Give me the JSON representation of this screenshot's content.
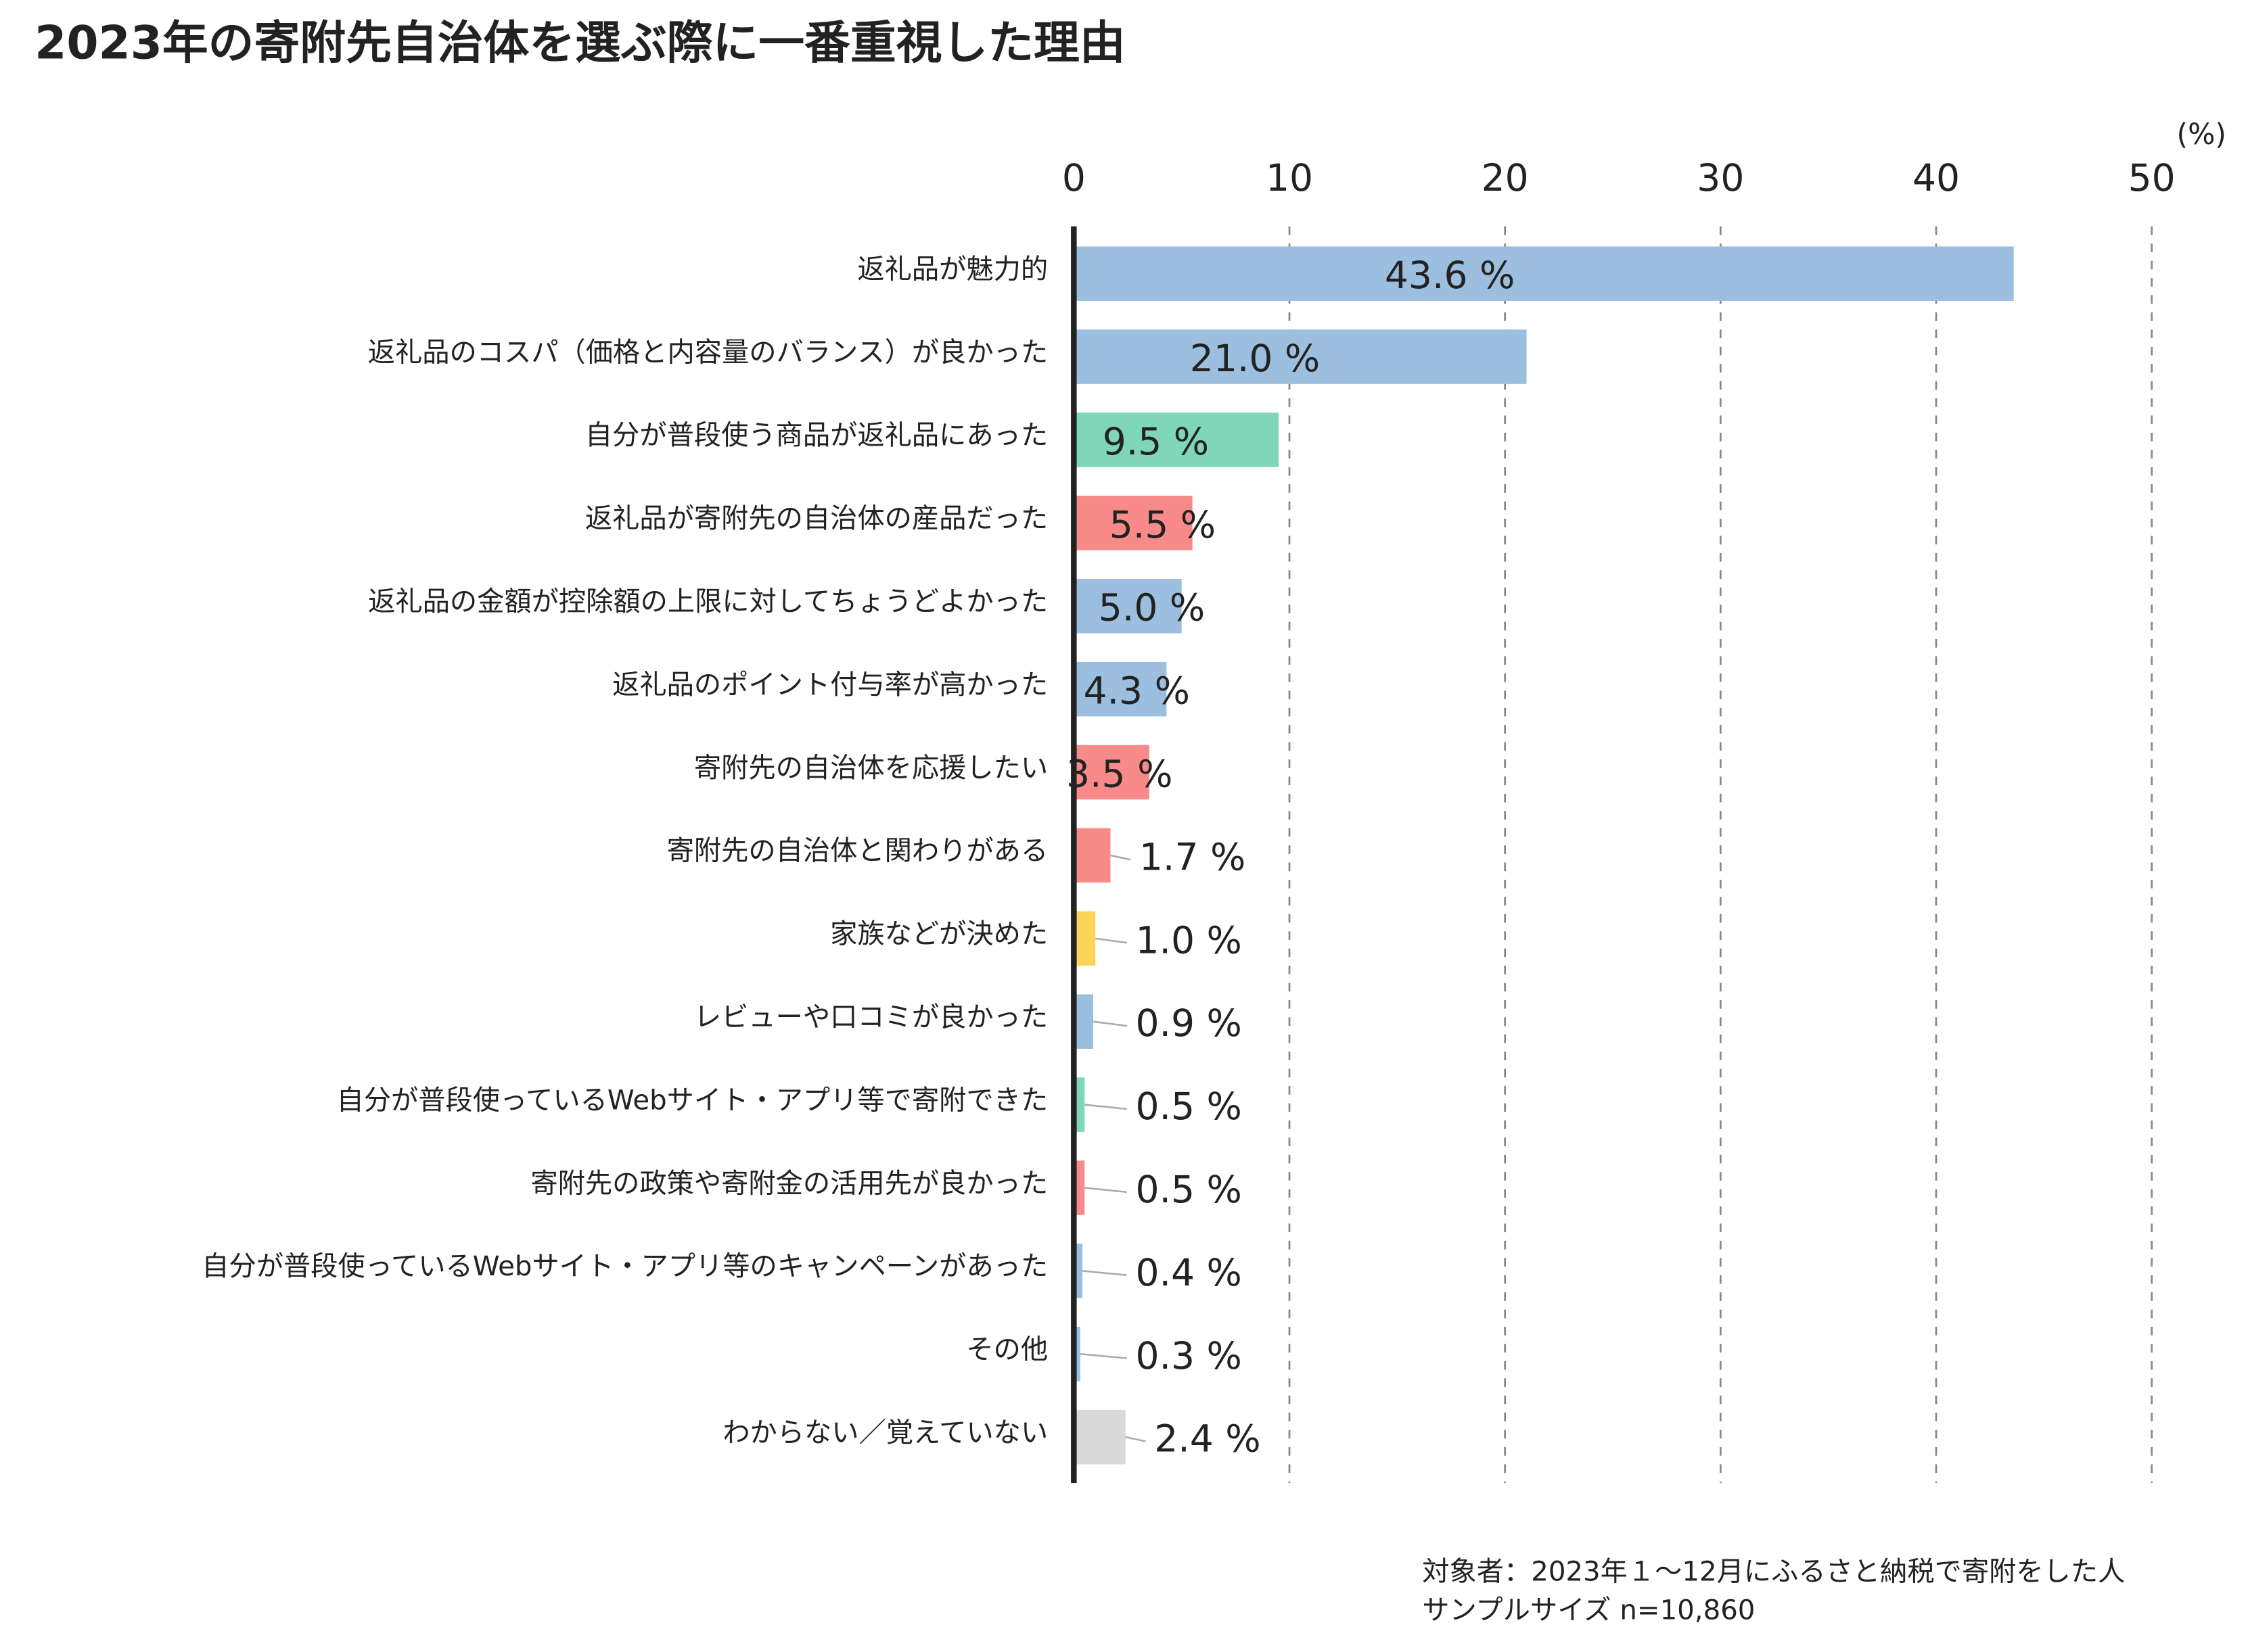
{
  "chart_data": {
    "type": "bar",
    "orientation": "horizontal",
    "title": "2023年の寄附先自治体を選ぶ際に一番重視した理由",
    "unit_label": "(%)",
    "categories": [
      "返礼品が魅力的",
      "返礼品のコスパ（価格と内容量のバランス）が良かった",
      "自分が普段使う商品が返礼品にあった",
      "返礼品が寄附先の自治体の産品だった",
      "返礼品の金額が控除額の上限に対してちょうどよかった",
      "返礼品のポイント付与率が高かった",
      "寄附先の自治体を応援したい",
      "寄附先の自治体と関わりがある",
      "家族などが決めた",
      "レビューや口コミが良かった",
      "自分が普段使っているWebサイト・アプリ等で寄附できた",
      "寄附先の政策や寄附金の活用先が良かった",
      "自分が普段使っているWebサイト・アプリ等のキャンペーンがあった",
      "その他",
      "わからない／覚えていない"
    ],
    "values": [
      43.6,
      21.0,
      9.5,
      5.5,
      5.0,
      4.3,
      3.5,
      1.7,
      1.0,
      0.9,
      0.5,
      0.5,
      0.4,
      0.3,
      2.4
    ],
    "value_labels": [
      "43.6 %",
      "21.0 %",
      "9.5 %",
      "5.5 %",
      "5.0 %",
      "4.3 %",
      "3.5 %",
      "1.7 %",
      "1.0 %",
      "0.9 %",
      "0.5 %",
      "0.5 %",
      "0.4 %",
      "0.3 %",
      "2.4 %"
    ],
    "colors": [
      "#9dbfdf",
      "#9dbfdf",
      "#7fd6b8",
      "#f98a8a",
      "#9dbfdf",
      "#9dbfdf",
      "#f98a8a",
      "#f98a8a",
      "#fcd45c",
      "#9dbfdf",
      "#7fd6b8",
      "#f98a8a",
      "#9dbfdf",
      "#9dbfdf",
      "#d9d9d9"
    ],
    "xlim": [
      0,
      50
    ],
    "xticks": [
      0,
      10,
      20,
      30,
      40,
      50
    ],
    "grid": true,
    "notes": [
      "対象者：2023年１～12月にふるさと納税で寄附をした人",
      "サンプルサイズ n=10,860"
    ]
  }
}
